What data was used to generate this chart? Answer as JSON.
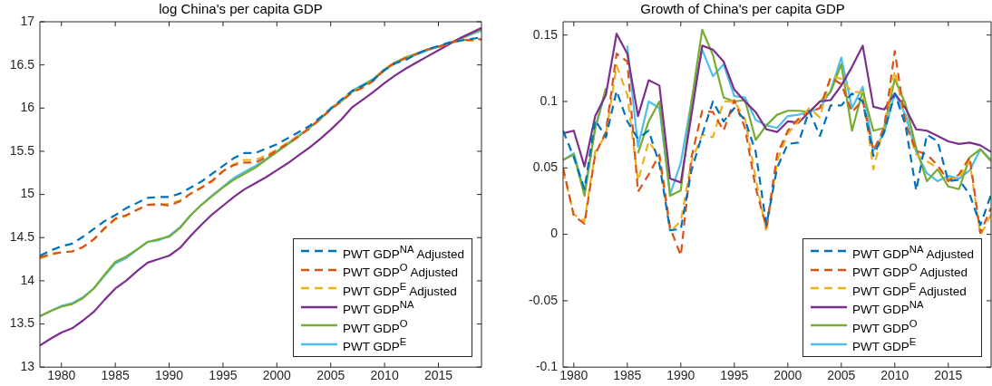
{
  "chart_data": [
    {
      "type": "line",
      "title": "log China's per capita GDP",
      "legend": "bottom right",
      "xlim": [
        1978,
        2019
      ],
      "xticks": [
        1980,
        1985,
        1990,
        1995,
        2000,
        2005,
        2010,
        2015
      ],
      "ylim": [
        13,
        17
      ],
      "yticks": [
        13,
        13.5,
        14,
        14.5,
        15,
        15.5,
        16,
        16.5,
        17
      ],
      "x": [
        1978,
        1979,
        1980,
        1981,
        1982,
        1983,
        1984,
        1985,
        1986,
        1987,
        1988,
        1989,
        1990,
        1991,
        1992,
        1993,
        1994,
        1995,
        1996,
        1997,
        1998,
        1999,
        2000,
        2001,
        2002,
        2003,
        2004,
        2005,
        2006,
        2007,
        2008,
        2009,
        2010,
        2011,
        2012,
        2013,
        2014,
        2015,
        2016,
        2017,
        2018,
        2019
      ],
      "series": [
        {
          "name": "PWT GDP$^{NA}$ Adjusted",
          "color": "#0072bd",
          "line_style": "dashed",
          "values": [
            14.29,
            14.35,
            14.4,
            14.43,
            14.51,
            14.6,
            14.69,
            14.76,
            14.84,
            14.9,
            14.96,
            14.97,
            14.97,
            15.01,
            15.08,
            15.15,
            15.24,
            15.33,
            15.42,
            15.48,
            15.48,
            15.53,
            15.58,
            15.65,
            15.72,
            15.79,
            15.89,
            15.99,
            16.1,
            16.2,
            16.26,
            16.33,
            16.44,
            16.52,
            16.56,
            16.63,
            16.68,
            16.72,
            16.76,
            16.78,
            16.8,
            16.82
          ]
        },
        {
          "name": "PWT GDP$^{O}$ Adjusted",
          "color": "#d95319",
          "line_style": "dashed",
          "values": [
            14.27,
            14.31,
            14.33,
            14.34,
            14.39,
            14.48,
            14.61,
            14.72,
            14.76,
            14.82,
            14.88,
            14.89,
            14.87,
            14.92,
            15.01,
            15.08,
            15.16,
            15.27,
            15.34,
            15.37,
            15.37,
            15.43,
            15.51,
            15.59,
            15.67,
            15.76,
            15.87,
            15.98,
            16.08,
            16.18,
            16.24,
            16.32,
            16.45,
            16.53,
            16.58,
            16.63,
            16.68,
            16.71,
            16.75,
            16.79,
            16.79,
            16.8
          ]
        },
        {
          "name": "PWT GDP$^{E}$ Adjusted",
          "color": "#edb120",
          "line_style": "dashed",
          "values": [
            14.26,
            14.3,
            14.33,
            14.34,
            14.39,
            14.48,
            14.6,
            14.71,
            14.75,
            14.82,
            14.88,
            14.88,
            14.89,
            14.93,
            15.01,
            15.08,
            15.15,
            15.27,
            15.35,
            15.4,
            15.4,
            15.45,
            15.52,
            15.6,
            15.68,
            15.77,
            15.88,
            15.99,
            16.09,
            16.19,
            16.24,
            16.32,
            16.44,
            16.52,
            16.58,
            16.63,
            16.68,
            16.71,
            16.75,
            16.78,
            16.78,
            16.79
          ]
        },
        {
          "name": "PWT GDP$^{NA}$",
          "color": "#7e2f8e",
          "line_style": "solid",
          "values": [
            13.25,
            13.33,
            13.4,
            13.45,
            13.54,
            13.64,
            13.78,
            13.91,
            14,
            14.11,
            14.21,
            14.25,
            14.29,
            14.38,
            14.52,
            14.65,
            14.77,
            14.87,
            14.97,
            15.06,
            15.13,
            15.2,
            15.28,
            15.36,
            15.45,
            15.54,
            15.64,
            15.75,
            15.87,
            16.01,
            16.1,
            16.19,
            16.29,
            16.38,
            16.46,
            16.53,
            16.6,
            16.67,
            16.74,
            16.81,
            16.87,
            16.93
          ]
        },
        {
          "name": "PWT GDP$^{O}$",
          "color": "#77ac30",
          "line_style": "solid",
          "values": [
            13.59,
            13.65,
            13.7,
            13.73,
            13.8,
            13.91,
            14.07,
            14.22,
            14.28,
            14.36,
            14.45,
            14.48,
            14.51,
            14.61,
            14.76,
            14.88,
            14.98,
            15.08,
            15.17,
            15.24,
            15.31,
            15.4,
            15.49,
            15.58,
            15.67,
            15.77,
            15.87,
            16,
            16.08,
            16.19,
            16.26,
            16.34,
            16.45,
            16.53,
            16.59,
            16.63,
            16.68,
            16.71,
            16.75,
            16.8,
            16.86,
            16.91
          ]
        },
        {
          "name": "PWT GDP$^{E}$",
          "color": "#4dbeee",
          "line_style": "solid",
          "values": [
            13.59,
            13.65,
            13.71,
            13.74,
            13.81,
            13.91,
            14.06,
            14.2,
            14.26,
            14.36,
            14.45,
            14.47,
            14.52,
            14.62,
            14.76,
            14.88,
            14.99,
            15.09,
            15.19,
            15.26,
            15.33,
            15.41,
            15.5,
            15.59,
            15.68,
            15.77,
            15.87,
            15.99,
            16.09,
            16.2,
            16.27,
            16.34,
            16.44,
            16.52,
            16.58,
            16.62,
            16.67,
            16.71,
            16.75,
            16.8,
            16.85,
            16.9
          ]
        }
      ]
    },
    {
      "type": "line",
      "title": "Growth of China's per capita GDP",
      "legend": "bottom right",
      "xlim": [
        1979,
        2019
      ],
      "xticks": [
        1980,
        1985,
        1990,
        1995,
        2000,
        2005,
        2010,
        2015
      ],
      "ylim": [
        -0.1,
        0.16
      ],
      "yticks": [
        -0.1,
        -0.05,
        0,
        0.05,
        0.1,
        0.15
      ],
      "x": [
        1979,
        1980,
        1981,
        1982,
        1983,
        1984,
        1985,
        1986,
        1987,
        1988,
        1989,
        1990,
        1991,
        1992,
        1993,
        1994,
        1995,
        1996,
        1997,
        1998,
        1999,
        2000,
        2001,
        2002,
        2003,
        2004,
        2005,
        2006,
        2007,
        2008,
        2009,
        2010,
        2011,
        2012,
        2013,
        2014,
        2015,
        2016,
        2017,
        2018,
        2019
      ],
      "series": [
        {
          "name": "PWT GDP$^{NA}$ Adjusted",
          "color": "#0072bd",
          "line_style": "dashed",
          "values": [
            0.078,
            0.058,
            0.034,
            0.086,
            0.073,
            0.108,
            0.085,
            0.072,
            0.078,
            0.053,
            0.003,
            0.004,
            0.048,
            0.075,
            0.1,
            0.085,
            0.095,
            0.086,
            0.062,
            0.007,
            0.05,
            0.068,
            0.069,
            0.093,
            0.074,
            0.097,
            0.097,
            0.106,
            0.1,
            0.059,
            0.077,
            0.106,
            0.082,
            0.033,
            0.075,
            0.07,
            0.04,
            0.041,
            0.03,
            0.007,
            0.03
          ]
        },
        {
          "name": "PWT GDP$^{O}$ Adjusted",
          "color": "#d95319",
          "line_style": "dashed",
          "values": [
            0.05,
            0.014,
            0.008,
            0.06,
            0.077,
            0.136,
            0.13,
            0.032,
            0.045,
            0.06,
            0.005,
            -0.016,
            0.058,
            0.093,
            0.092,
            0.078,
            0.101,
            0.08,
            0.035,
            0.005,
            0.06,
            0.078,
            0.087,
            0.092,
            0.095,
            0.118,
            0.113,
            0.092,
            0.101,
            0.063,
            0.08,
            0.138,
            0.083,
            0.063,
            0.06,
            0.052,
            0.04,
            0.045,
            0.058,
            0.001,
            0.02
          ]
        },
        {
          "name": "PWT GDP$^{E}$ Adjusted",
          "color": "#edb120",
          "line_style": "dashed",
          "values": [
            0.048,
            0.015,
            0.01,
            0.062,
            0.075,
            0.127,
            0.105,
            0.04,
            0.07,
            0.058,
            0.002,
            0.01,
            0.055,
            0.075,
            0.073,
            0.1,
            0.1,
            0.087,
            0.042,
            0.002,
            0.055,
            0.076,
            0.085,
            0.095,
            0.088,
            0.119,
            0.117,
            0.107,
            0.107,
            0.049,
            0.082,
            0.123,
            0.085,
            0.06,
            0.055,
            0.05,
            0.042,
            0.042,
            0.055,
            -0.001,
            0.015
          ]
        },
        {
          "name": "PWT GDP$^{NA}$",
          "color": "#7e2f8e",
          "line_style": "solid",
          "values": [
            0.076,
            0.078,
            0.051,
            0.089,
            0.105,
            0.151,
            0.136,
            0.089,
            0.116,
            0.112,
            0.042,
            0.039,
            0.09,
            0.142,
            0.139,
            0.13,
            0.109,
            0.1,
            0.092,
            0.079,
            0.077,
            0.085,
            0.084,
            0.092,
            0.1,
            0.101,
            0.112,
            0.126,
            0.142,
            0.096,
            0.094,
            0.106,
            0.095,
            0.079,
            0.078,
            0.074,
            0.07,
            0.068,
            0.069,
            0.067,
            0.062
          ]
        },
        {
          "name": "PWT GDP$^{O}$",
          "color": "#77ac30",
          "line_style": "solid",
          "values": [
            0.056,
            0.06,
            0.029,
            0.08,
            0.11,
            null,
            null,
            0.061,
            0.085,
            0.1,
            0.029,
            0.033,
            0.1,
            0.154,
            0.135,
            0.103,
            0.1,
            0.101,
            0.071,
            0.082,
            0.09,
            0.093,
            0.093,
            0.092,
            0.1,
            0.107,
            0.128,
            0.078,
            0.108,
            0.078,
            0.08,
            0.117,
            0.098,
            0.065,
            0.04,
            0.049,
            0.036,
            0.034,
            0.058,
            0.064,
            0.055
          ]
        },
        {
          "name": "PWT GDP$^{E}$",
          "color": "#4dbeee",
          "line_style": "solid",
          "values": [
            0.056,
            0.061,
            0.032,
            0.08,
            0.108,
            null,
            0.142,
            0.066,
            0.1,
            0.095,
            0.03,
            0.054,
            0.1,
            0.139,
            0.119,
            0.128,
            0.104,
            0.103,
            0.086,
            0.082,
            0.08,
            0.089,
            0.09,
            0.092,
            0.095,
            0.108,
            0.133,
            0.095,
            0.111,
            0.063,
            0.076,
            0.106,
            0.09,
            0.062,
            0.046,
            0.04,
            0.044,
            0.042,
            0.048,
            0.064,
            0.056
          ]
        }
      ]
    }
  ]
}
